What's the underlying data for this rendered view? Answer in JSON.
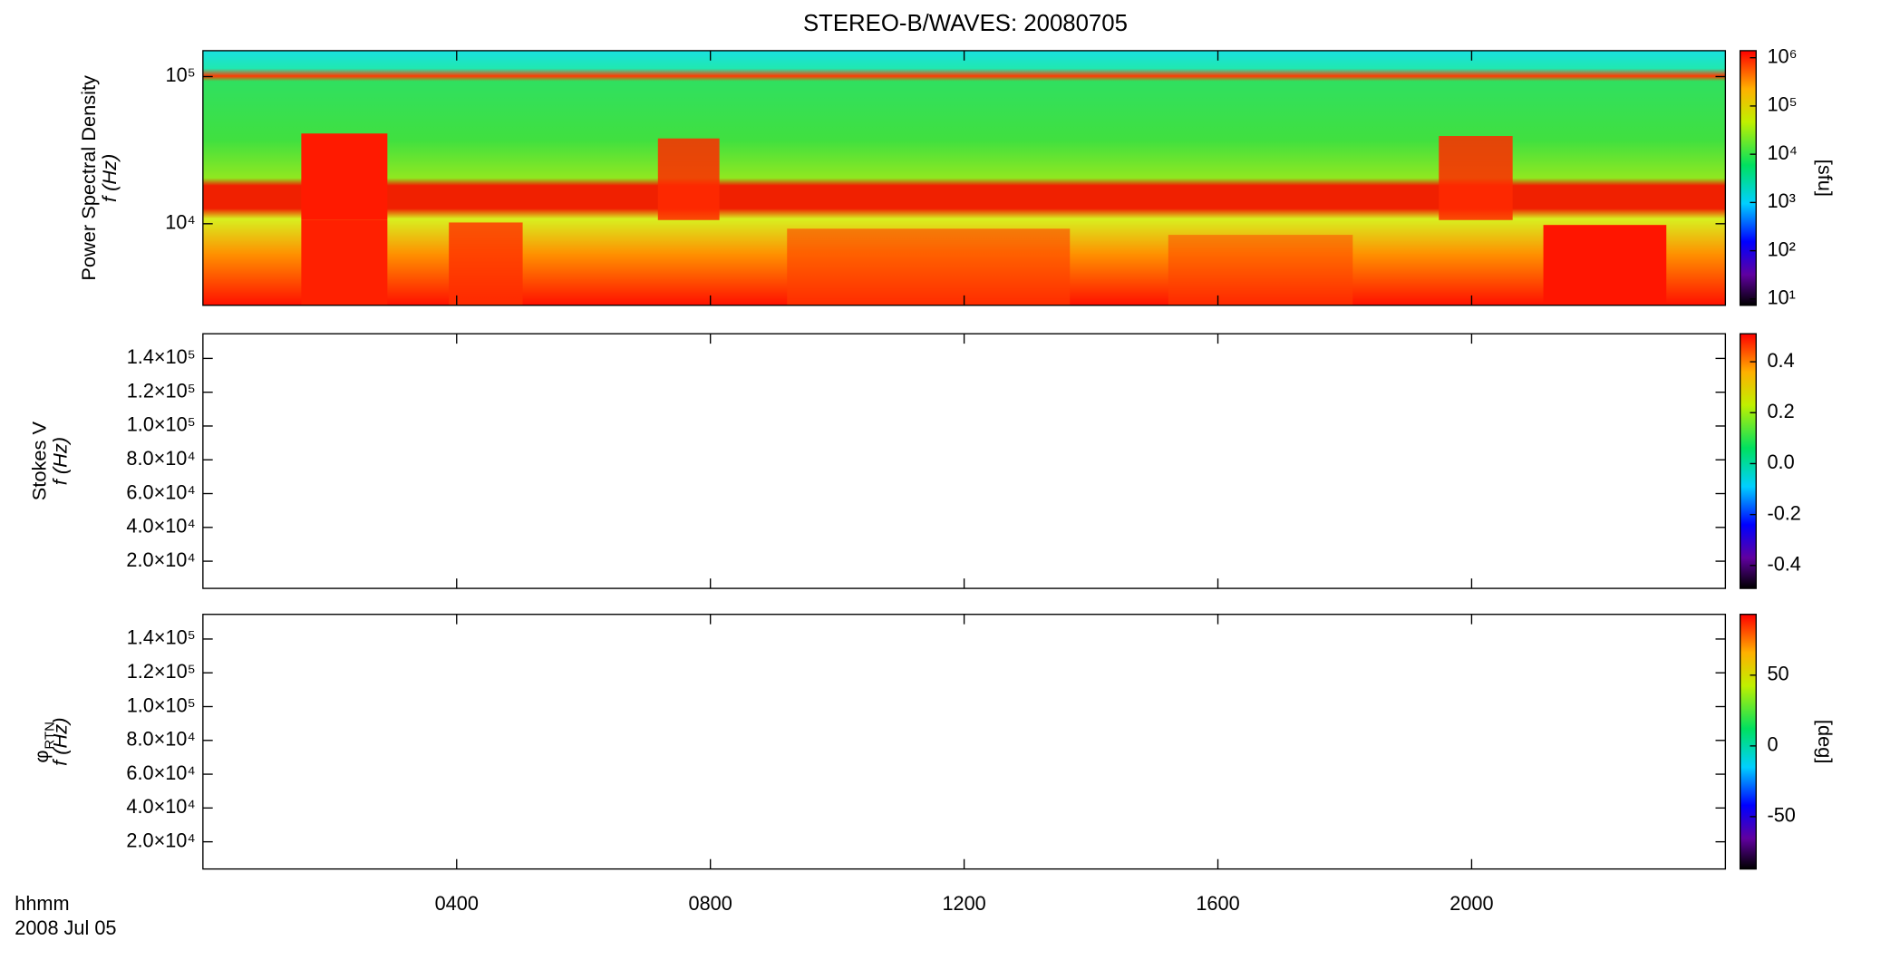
{
  "chart_data": {
    "type": "spectrogram",
    "title": "STEREO-B/WAVES: 20080705",
    "xlabel": "hhmm",
    "date_label": "2008 Jul 05",
    "xlim": [
      0,
      24
    ],
    "xticks": [
      {
        "value": 4,
        "label": "0400"
      },
      {
        "value": 8,
        "label": "0800"
      },
      {
        "value": 12,
        "label": "1200"
      },
      {
        "value": 16,
        "label": "1600"
      },
      {
        "value": 20,
        "label": "2000"
      }
    ],
    "panels": [
      {
        "ylabel": "Power Spectral Density",
        "ylabel2": "f (Hz)",
        "ylog": true,
        "ylim": [
          2790,
          150000
        ],
        "yticks": [
          {
            "value": 10000,
            "label": "10⁴"
          },
          {
            "value": 100000,
            "label": "10⁵"
          }
        ],
        "colorbar": {
          "log": true,
          "lim": [
            7.4,
            1400000
          ],
          "label": "[sfu]",
          "ticks": [
            {
              "value": 10,
              "label": "10¹"
            },
            {
              "value": 100,
              "label": "10²"
            },
            {
              "value": 1000,
              "label": "10³"
            },
            {
              "value": 10000,
              "label": "10⁴"
            },
            {
              "value": 100000,
              "label": "10⁵"
            },
            {
              "value": 1000000,
              "label": "10⁶"
            }
          ]
        }
      },
      {
        "ylabel": "Stokes V",
        "ylabel2": "f (Hz)",
        "ylog": false,
        "ylim": [
          3900,
          154600
        ],
        "yticks": [
          {
            "value": 20000,
            "label": "2.0×10⁴"
          },
          {
            "value": 40000,
            "label": "4.0×10⁴"
          },
          {
            "value": 60000,
            "label": "6.0×10⁴"
          },
          {
            "value": 80000,
            "label": "8.0×10⁴"
          },
          {
            "value": 100000,
            "label": "1.0×10⁵"
          },
          {
            "value": 120000,
            "label": "1.2×10⁵"
          },
          {
            "value": 140000,
            "label": "1.4×10⁵"
          }
        ],
        "colorbar": {
          "log": false,
          "lim": [
            -0.49,
            0.51
          ],
          "ticks": [
            {
              "value": -0.4,
              "label": "-0.4"
            },
            {
              "value": -0.2,
              "label": "-0.2"
            },
            {
              "value": 0,
              "label": "0.0"
            },
            {
              "value": 0.2,
              "label": "0.2"
            },
            {
              "value": 0.4,
              "label": "0.4"
            }
          ]
        }
      },
      {
        "ylabel": "φ",
        "ylabel_sub": "RTN",
        "ylabel2": "f (Hz)",
        "ylog": false,
        "ylim": [
          3900,
          154600
        ],
        "yticks": [
          {
            "value": 20000,
            "label": "2.0×10⁴"
          },
          {
            "value": 40000,
            "label": "4.0×10⁴"
          },
          {
            "value": 60000,
            "label": "6.0×10⁴"
          },
          {
            "value": 80000,
            "label": "8.0×10⁴"
          },
          {
            "value": 100000,
            "label": "1.0×10⁵"
          },
          {
            "value": 120000,
            "label": "1.2×10⁵"
          },
          {
            "value": 140000,
            "label": "1.4×10⁵"
          }
        ],
        "colorbar": {
          "log": false,
          "lim": [
            -87,
            93
          ],
          "label": "[deg]",
          "ticks": [
            -50,
            0,
            50
          ]
        }
      }
    ]
  }
}
